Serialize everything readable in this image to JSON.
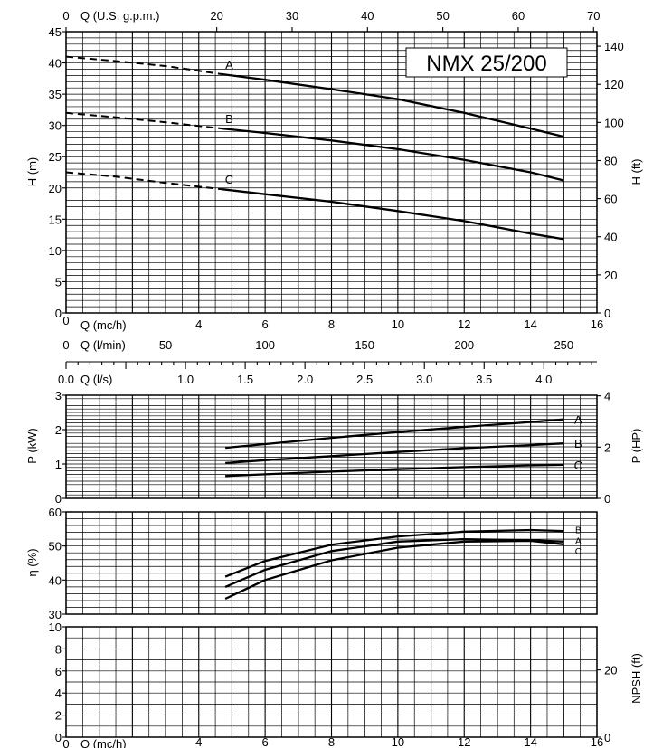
{
  "model_label": "NMX 25/200",
  "axes": {
    "q_usgpm_label": "Q (U.S. g.p.m.)",
    "q_usgpm_ticks": [
      "0",
      "20",
      "30",
      "40",
      "50",
      "60",
      "70"
    ],
    "q_mch_label": "Q (mc/h)",
    "q_mch_ticks": [
      "0",
      "4",
      "6",
      "8",
      "10",
      "12",
      "14",
      "16"
    ],
    "q_lmin_label": "Q (l/min)",
    "q_lmin_ticks": [
      "0",
      "50",
      "100",
      "150",
      "200",
      "250"
    ],
    "q_ls_label": "Q (l/s)",
    "q_ls_ticks": [
      "0.0",
      "1.0",
      "1.5",
      "2.0",
      "2.5",
      "3.0",
      "3.5",
      "4.0"
    ],
    "h_m_label": "H (m)",
    "h_m_ticks": [
      "0",
      "5",
      "10",
      "15",
      "20",
      "25",
      "30",
      "35",
      "40",
      "45"
    ],
    "h_ft_label": "H (ft)",
    "h_ft_ticks": [
      "0",
      "20",
      "40",
      "60",
      "80",
      "100",
      "120",
      "140"
    ],
    "p_kw_label": "P (kW)",
    "p_kw_ticks": [
      "0",
      "1",
      "2",
      "3"
    ],
    "p_hp_label": "P (HP)",
    "p_hp_ticks": [
      "0",
      "2",
      "4"
    ],
    "eff_label": "η (%)",
    "eff_ticks": [
      "30",
      "40",
      "50",
      "60"
    ],
    "npsh_ticks": [
      "0",
      "2",
      "4",
      "6",
      "8",
      "10"
    ],
    "npsh_ft_label": "NPSH (ft)",
    "npsh_ft_ticks": [
      "0",
      "20"
    ]
  },
  "chart_data": [
    {
      "type": "line",
      "panel": "head",
      "xlabel": "Q (mc/h)",
      "ylabel": "H (m)",
      "xlim": [
        0,
        16
      ],
      "ylim": [
        0,
        45
      ],
      "grid": true,
      "series": [
        {
          "name": "A",
          "x": [
            4.7,
            6,
            8,
            10,
            12,
            14,
            15
          ],
          "y": [
            38.2,
            37.3,
            35.8,
            34.2,
            32.0,
            29.5,
            28.2
          ],
          "dashed_x": [
            0,
            1.5,
            3,
            4.7
          ],
          "dashed_y": [
            41.0,
            40.3,
            39.5,
            38.2
          ]
        },
        {
          "name": "B",
          "x": [
            4.7,
            6,
            8,
            10,
            12,
            14,
            15
          ],
          "y": [
            29.5,
            28.8,
            27.6,
            26.2,
            24.5,
            22.5,
            21.2
          ],
          "dashed_x": [
            0,
            1.5,
            3,
            4.7
          ],
          "dashed_y": [
            32.0,
            31.3,
            30.5,
            29.5
          ]
        },
        {
          "name": "C",
          "x": [
            4.7,
            6,
            8,
            10,
            12,
            14,
            15
          ],
          "y": [
            19.8,
            19.0,
            17.8,
            16.3,
            14.7,
            12.7,
            11.8
          ],
          "dashed_x": [
            0,
            1.5,
            3,
            4.7
          ],
          "dashed_y": [
            22.5,
            21.8,
            20.8,
            19.8
          ]
        }
      ]
    },
    {
      "type": "line",
      "panel": "power",
      "xlabel": "Q (l/s)",
      "ylabel": "P (kW)",
      "xlim": [
        0,
        16
      ],
      "ylim": [
        0,
        3
      ],
      "grid": true,
      "series": [
        {
          "name": "A",
          "x": [
            4.8,
            6,
            8,
            10,
            12,
            14,
            15
          ],
          "y": [
            1.47,
            1.58,
            1.76,
            1.93,
            2.08,
            2.22,
            2.3
          ]
        },
        {
          "name": "B",
          "x": [
            4.8,
            6,
            8,
            10,
            12,
            14,
            15
          ],
          "y": [
            1.03,
            1.11,
            1.23,
            1.35,
            1.46,
            1.55,
            1.6
          ]
        },
        {
          "name": "C",
          "x": [
            4.8,
            6,
            8,
            10,
            12,
            14,
            15
          ],
          "y": [
            0.65,
            0.7,
            0.78,
            0.85,
            0.91,
            0.96,
            0.98
          ]
        }
      ]
    },
    {
      "type": "line",
      "panel": "efficiency",
      "ylabel": "η (%)",
      "xlim": [
        0,
        16
      ],
      "ylim": [
        30,
        60
      ],
      "grid": true,
      "series": [
        {
          "name": "B",
          "x": [
            4.8,
            6,
            8,
            10,
            12,
            14,
            15
          ],
          "y": [
            34.5,
            40.0,
            45.8,
            49.5,
            51.3,
            51.5,
            50.5
          ]
        },
        {
          "name": "A",
          "x": [
            4.8,
            6,
            8,
            10,
            12,
            14,
            15
          ],
          "y": [
            38.0,
            43.0,
            48.5,
            51.3,
            52.0,
            51.7,
            51.3
          ]
        },
        {
          "name": "C",
          "x": [
            4.8,
            6,
            8,
            10,
            12,
            14,
            15
          ],
          "y": [
            41.0,
            45.6,
            50.4,
            52.8,
            54.2,
            54.7,
            54.4
          ]
        }
      ]
    },
    {
      "type": "line",
      "panel": "npsh",
      "xlabel": "Q (mc/h)",
      "xlim": [
        0,
        16
      ],
      "ylim": [
        0,
        10
      ],
      "grid": true,
      "series": []
    }
  ]
}
